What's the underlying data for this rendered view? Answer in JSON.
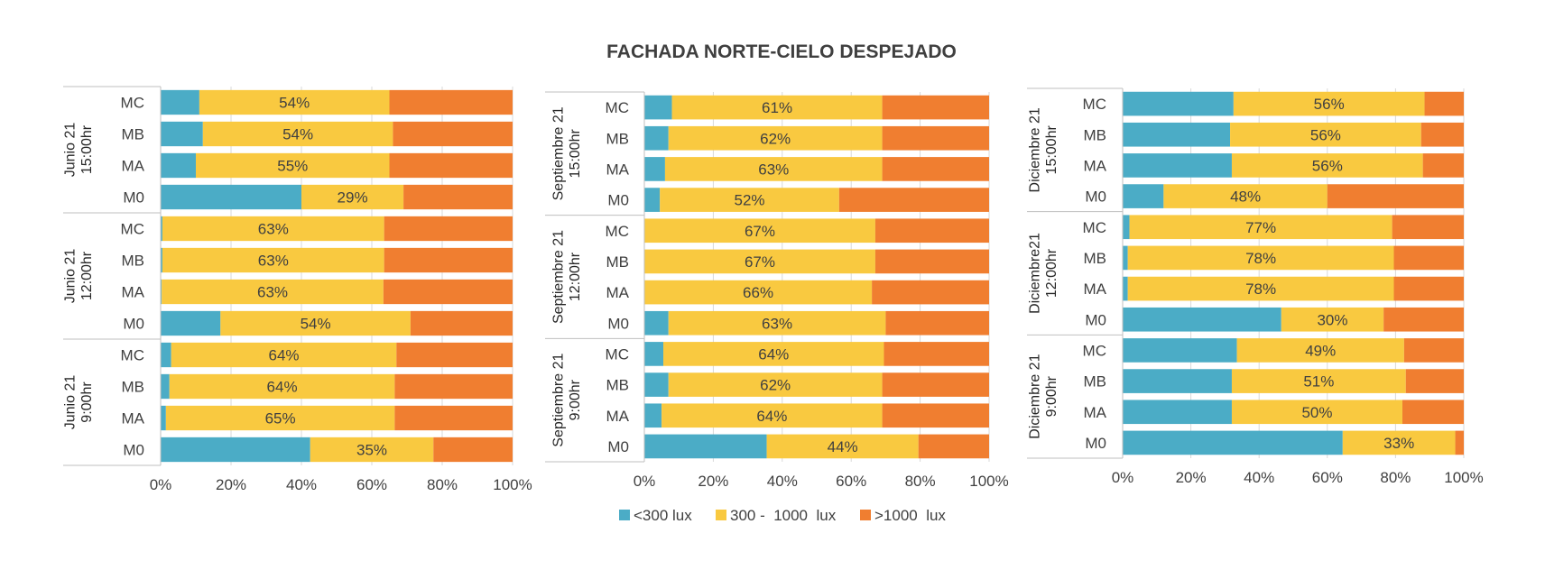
{
  "chart_data": {
    "title": "FACHADA NORTE-CIELO DESPEJADO",
    "type": "bar",
    "orientation": "horizontal",
    "stacked": "100%",
    "series_names": [
      "<300 lux",
      "300 -  1000  lux",
      ">1000  lux"
    ],
    "colors": [
      "#4BACC6",
      "#F9C940",
      "#F07E30"
    ],
    "x_ticks": [
      "0%",
      "20%",
      "40%",
      "60%",
      "80%",
      "100%"
    ],
    "xlim": [
      0,
      100
    ],
    "panels": [
      {
        "name": "Junio",
        "groups": [
          {
            "label": [
              "Junio 21",
              "15:00hr"
            ],
            "rows": [
              {
                "cat": "MC",
                "values": [
                  11,
                  54,
                  35
                ],
                "label": "54%"
              },
              {
                "cat": "MB",
                "values": [
                  12,
                  54,
                  34
                ],
                "label": "54%"
              },
              {
                "cat": "MA",
                "values": [
                  10,
                  55,
                  35
                ],
                "label": "55%"
              },
              {
                "cat": "M0",
                "values": [
                  40,
                  29,
                  31
                ],
                "label": "29%"
              }
            ]
          },
          {
            "label": [
              "Junio 21",
              "12:00hr"
            ],
            "rows": [
              {
                "cat": "MC",
                "values": [
                  0.5,
                  63,
                  36.5
                ],
                "label": "63%"
              },
              {
                "cat": "MB",
                "values": [
                  0.5,
                  63,
                  36.5
                ],
                "label": "63%"
              },
              {
                "cat": "MA",
                "values": [
                  0.3,
                  63,
                  36.7
                ],
                "label": "63%"
              },
              {
                "cat": "M0",
                "values": [
                  17,
                  54,
                  29
                ],
                "label": "54%"
              }
            ]
          },
          {
            "label": [
              "Junio 21",
              "9:00hr"
            ],
            "rows": [
              {
                "cat": "MC",
                "values": [
                  3,
                  64,
                  33
                ],
                "label": "64%"
              },
              {
                "cat": "MB",
                "values": [
                  2.5,
                  64,
                  33.5
                ],
                "label": "64%"
              },
              {
                "cat": "MA",
                "values": [
                  1.5,
                  65,
                  33.5
                ],
                "label": "65%"
              },
              {
                "cat": "M0",
                "values": [
                  42.5,
                  35,
                  22.5
                ],
                "label": "35%"
              }
            ]
          }
        ]
      },
      {
        "name": "Septiembre",
        "groups": [
          {
            "label": [
              "Septiembre 21",
              "15:00hr"
            ],
            "rows": [
              {
                "cat": "MC",
                "values": [
                  8,
                  61,
                  31
                ],
                "label": "61%"
              },
              {
                "cat": "MB",
                "values": [
                  7,
                  62,
                  31
                ],
                "label": "62%"
              },
              {
                "cat": "MA",
                "values": [
                  6,
                  63,
                  31
                ],
                "label": "63%"
              },
              {
                "cat": "M0",
                "values": [
                  4.5,
                  52,
                  43.5
                ],
                "label": "52%"
              }
            ]
          },
          {
            "label": [
              "Septiembre 21",
              "12:00hr"
            ],
            "rows": [
              {
                "cat": "MC",
                "values": [
                  0,
                  67,
                  33
                ],
                "label": "67%"
              },
              {
                "cat": "MB",
                "values": [
                  0,
                  67,
                  33
                ],
                "label": "67%"
              },
              {
                "cat": "MA",
                "values": [
                  0,
                  66,
                  34
                ],
                "label": "66%"
              },
              {
                "cat": "M0",
                "values": [
                  7,
                  63,
                  30
                ],
                "label": "63%"
              }
            ]
          },
          {
            "label": [
              "Septiembre 21",
              "9:00hr"
            ],
            "rows": [
              {
                "cat": "MC",
                "values": [
                  5.5,
                  64,
                  30.5
                ],
                "label": "64%"
              },
              {
                "cat": "MB",
                "values": [
                  7,
                  62,
                  31
                ],
                "label": "62%"
              },
              {
                "cat": "MA",
                "values": [
                  5,
                  64,
                  31
                ],
                "label": "64%"
              },
              {
                "cat": "M0",
                "values": [
                  35.5,
                  44,
                  20.5
                ],
                "label": "44%"
              }
            ]
          }
        ]
      },
      {
        "name": "Diciembre",
        "groups": [
          {
            "label": [
              "Diciembre 21",
              "15:00hr"
            ],
            "rows": [
              {
                "cat": "MC",
                "values": [
                  32.5,
                  56,
                  11.5
                ],
                "label": "56%"
              },
              {
                "cat": "MB",
                "values": [
                  31.5,
                  56,
                  12.5
                ],
                "label": "56%"
              },
              {
                "cat": "MA",
                "values": [
                  32,
                  56,
                  12
                ],
                "label": "56%"
              },
              {
                "cat": "M0",
                "values": [
                  12,
                  48,
                  40
                ],
                "label": "48%"
              }
            ]
          },
          {
            "label": [
              "Diciembre21",
              "12:00hr"
            ],
            "rows": [
              {
                "cat": "MC",
                "values": [
                  2,
                  77,
                  21
                ],
                "label": "77%"
              },
              {
                "cat": "MB",
                "values": [
                  1.5,
                  78,
                  20.5
                ],
                "label": "78%"
              },
              {
                "cat": "MA",
                "values": [
                  1.5,
                  78,
                  20.5
                ],
                "label": "78%"
              },
              {
                "cat": "M0",
                "values": [
                  46.5,
                  30,
                  23.5
                ],
                "label": "30%"
              }
            ]
          },
          {
            "label": [
              "Diciembre 21",
              "9:00hr"
            ],
            "rows": [
              {
                "cat": "MC",
                "values": [
                  33.5,
                  49,
                  17.5
                ],
                "label": "49%"
              },
              {
                "cat": "MB",
                "values": [
                  32,
                  51,
                  17
                ],
                "label": "51%"
              },
              {
                "cat": "MA",
                "values": [
                  32,
                  50,
                  18
                ],
                "label": "50%"
              },
              {
                "cat": "M0",
                "values": [
                  64.5,
                  33,
                  2.5
                ],
                "label": "33%"
              }
            ]
          }
        ]
      }
    ]
  }
}
